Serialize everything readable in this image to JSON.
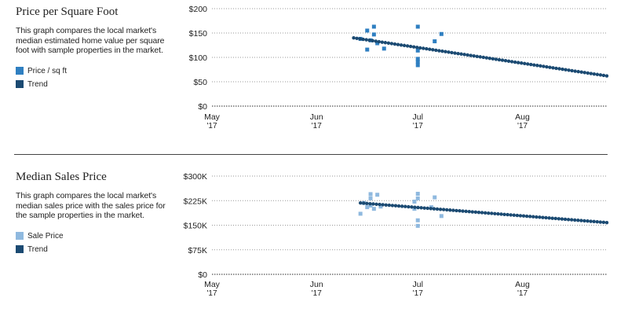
{
  "charts": [
    {
      "title": "Price per Square Foot",
      "description": "This graph compares the local market's median estimated home value per square foot with sample properties in the market.",
      "legend": [
        {
          "label": "Price / sq ft",
          "color": "#2f7fc1"
        },
        {
          "label": "Trend",
          "color": "#1b4a72"
        }
      ]
    },
    {
      "title": "Median Sales Price",
      "description": "This graph compares the local market's median sales price with the sales price for the sample properties in the market.",
      "legend": [
        {
          "label": "Sale Price",
          "color": "#8fb9df"
        },
        {
          "label": "Trend",
          "color": "#1b4a72"
        }
      ]
    }
  ],
  "chart_data": [
    {
      "type": "scatter",
      "title": "Price per Square Foot",
      "x_ticks": [
        {
          "date": "2017-05-01",
          "line1": "May",
          "line2": "'17"
        },
        {
          "date": "2017-06-01",
          "line1": "Jun",
          "line2": "'17"
        },
        {
          "date": "2017-07-01",
          "line1": "Jul",
          "line2": "'17"
        },
        {
          "date": "2017-08-01",
          "line1": "Aug",
          "line2": "'17"
        }
      ],
      "xlim": [
        "2017-05-01",
        "2017-08-26"
      ],
      "y_ticks": [
        0,
        50,
        100,
        150,
        200
      ],
      "y_tick_labels": [
        "$0",
        "$50",
        "$100",
        "$150",
        "$200"
      ],
      "ylim": [
        0,
        200
      ],
      "grid": true,
      "series": [
        {
          "name": "Price / sq ft",
          "kind": "points",
          "color": "#2f7fc1",
          "points": [
            {
              "x": "2017-06-14",
              "y": 138
            },
            {
              "x": "2017-06-16",
              "y": 155
            },
            {
              "x": "2017-06-16",
              "y": 116
            },
            {
              "x": "2017-06-17",
              "y": 135
            },
            {
              "x": "2017-06-18",
              "y": 163
            },
            {
              "x": "2017-06-18",
              "y": 147
            },
            {
              "x": "2017-06-19",
              "y": 129
            },
            {
              "x": "2017-06-21",
              "y": 118
            },
            {
              "x": "2017-07-01",
              "y": 163
            },
            {
              "x": "2017-07-01",
              "y": 114
            },
            {
              "x": "2017-07-01",
              "y": 97
            },
            {
              "x": "2017-07-01",
              "y": 91
            },
            {
              "x": "2017-07-01",
              "y": 84
            },
            {
              "x": "2017-07-06",
              "y": 133
            },
            {
              "x": "2017-07-08",
              "y": 148
            }
          ]
        },
        {
          "name": "Trend",
          "kind": "dotted-line",
          "color": "#1b4a72",
          "points": [
            {
              "x": "2017-06-12",
              "y": 140
            },
            {
              "x": "2017-08-26",
              "y": 62
            }
          ]
        }
      ]
    },
    {
      "type": "scatter",
      "title": "Median Sales Price",
      "x_ticks": [
        {
          "date": "2017-05-01",
          "line1": "May",
          "line2": "'17"
        },
        {
          "date": "2017-06-01",
          "line1": "Jun",
          "line2": "'17"
        },
        {
          "date": "2017-07-01",
          "line1": "Jul",
          "line2": "'17"
        },
        {
          "date": "2017-08-01",
          "line1": "Aug",
          "line2": "'17"
        }
      ],
      "xlim": [
        "2017-05-01",
        "2017-08-26"
      ],
      "y_ticks": [
        0,
        75000,
        150000,
        225000,
        300000
      ],
      "y_tick_labels": [
        "$0",
        "$75K",
        "$150K",
        "$225K",
        "$300K"
      ],
      "ylim": [
        0,
        300000
      ],
      "grid": true,
      "series": [
        {
          "name": "Sale Price",
          "kind": "points",
          "color": "#8fb9df",
          "points": [
            {
              "x": "2017-06-14",
              "y": 185000
            },
            {
              "x": "2017-06-15",
              "y": 218000
            },
            {
              "x": "2017-06-16",
              "y": 205000
            },
            {
              "x": "2017-06-17",
              "y": 245000
            },
            {
              "x": "2017-06-17",
              "y": 232000
            },
            {
              "x": "2017-06-17",
              "y": 210000
            },
            {
              "x": "2017-06-18",
              "y": 200000
            },
            {
              "x": "2017-06-19",
              "y": 243000
            },
            {
              "x": "2017-06-20",
              "y": 207000
            },
            {
              "x": "2017-06-30",
              "y": 222000
            },
            {
              "x": "2017-06-30",
              "y": 200000
            },
            {
              "x": "2017-07-01",
              "y": 246000
            },
            {
              "x": "2017-07-01",
              "y": 232000
            },
            {
              "x": "2017-07-01",
              "y": 165000
            },
            {
              "x": "2017-07-01",
              "y": 148000
            },
            {
              "x": "2017-07-05",
              "y": 205000
            },
            {
              "x": "2017-07-06",
              "y": 235000
            },
            {
              "x": "2017-07-08",
              "y": 178000
            }
          ]
        },
        {
          "name": "Trend",
          "kind": "dotted-line",
          "color": "#1b4a72",
          "points": [
            {
              "x": "2017-06-14",
              "y": 218000
            },
            {
              "x": "2017-08-26",
              "y": 158000
            }
          ]
        }
      ]
    }
  ]
}
